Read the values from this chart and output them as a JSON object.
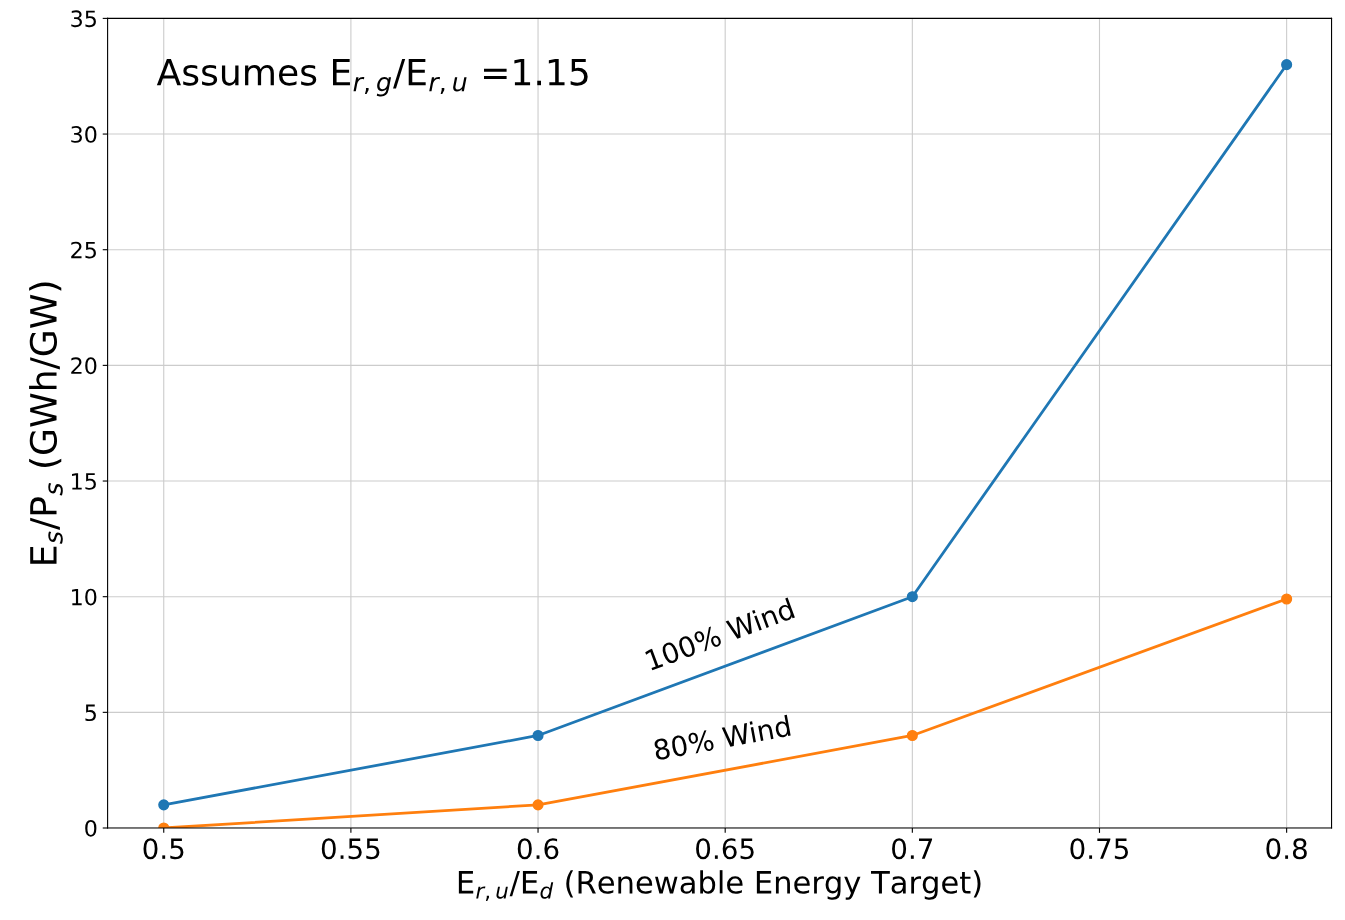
{
  "chart_data": {
    "type": "line",
    "xlabel": "E$_{r,u}$/E$_{d}$ (Renewable Energy Target)",
    "ylabel": "E$_{s}$/P$_{s}$ (GWh/GW)",
    "annotations": [
      "Assumes E$_{r,g}$/E$_{r,u}$ =1.15"
    ],
    "x": [
      0.5,
      0.6,
      0.7,
      0.8
    ],
    "series": [
      {
        "name": "100% Wind",
        "color": "#1f77b4",
        "values": [
          1,
          4,
          10,
          33
        ]
      },
      {
        "name": "80% Wind",
        "color": "#ff7f0e",
        "values": [
          0,
          1,
          4,
          9.9
        ]
      }
    ],
    "xlim": [
      0.485,
      0.812
    ],
    "ylim": [
      0,
      35
    ],
    "xticks": [
      0.5,
      0.55,
      0.6,
      0.65,
      0.7,
      0.75,
      0.8
    ],
    "yticks": [
      0,
      5,
      10,
      15,
      20,
      25,
      30,
      35
    ],
    "grid": true,
    "marker": "circle",
    "line_style": "solid",
    "legend": false
  }
}
